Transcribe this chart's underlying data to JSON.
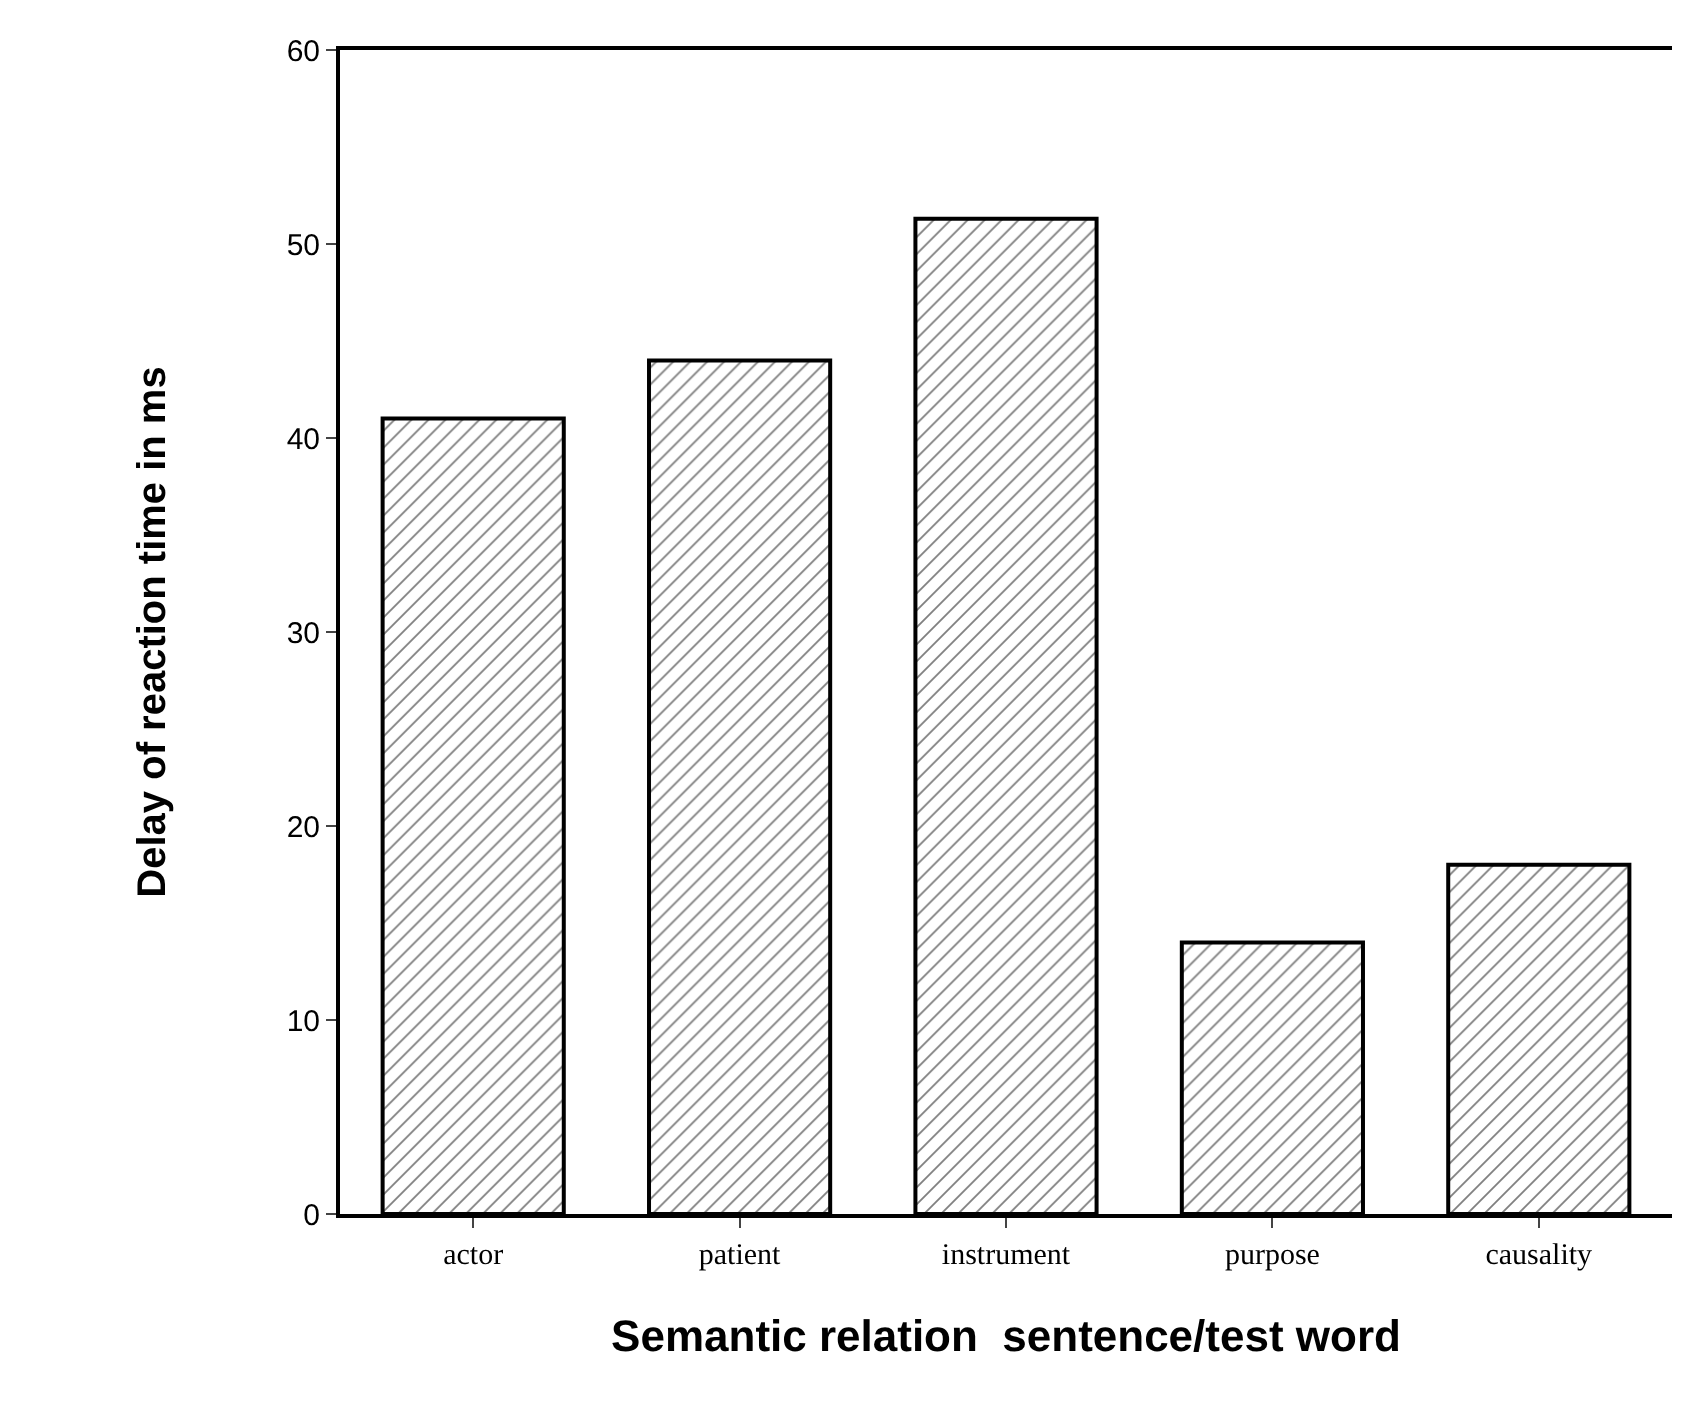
{
  "chart_data": {
    "type": "bar",
    "xlabel": "Semantic relation  sentence/test word",
    "ylabel": "Delay of reaction time in ms",
    "categories": [
      "actor",
      "patient",
      "instrument",
      "purpose",
      "causality"
    ],
    "values": [
      41,
      44,
      51.3,
      14,
      18
    ],
    "color": "#000000",
    "ylim": [
      0,
      60
    ],
    "yticks": [
      0,
      10,
      20,
      30,
      40,
      50,
      60
    ],
    "legend": false
  }
}
